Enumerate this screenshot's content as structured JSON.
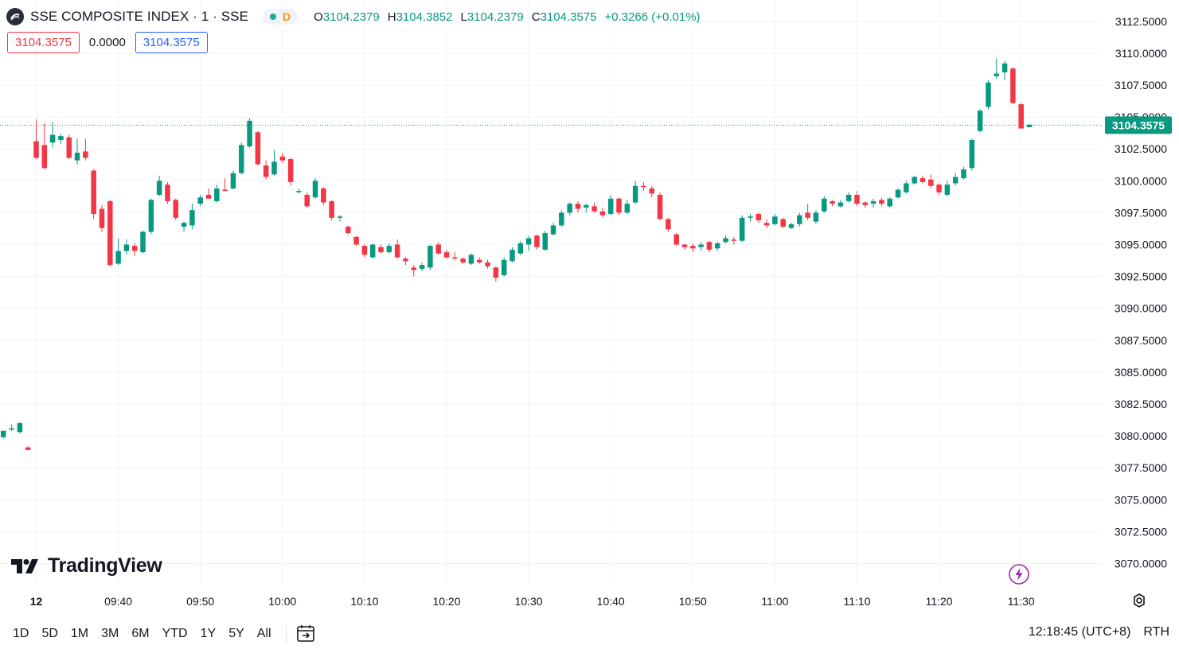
{
  "header": {
    "symbol_title": "SSE COMPOSITE INDEX · 1 · SSE",
    "interval_badge": "D",
    "ohlc": [
      {
        "key": "O",
        "value": "3104.2379"
      },
      {
        "key": "H",
        "value": "3104.3852"
      },
      {
        "key": "L",
        "value": "3104.2379"
      },
      {
        "key": "C",
        "value": "3104.3575"
      }
    ],
    "change": "+0.3266 (+0.01%)"
  },
  "price_boxes": {
    "bid": "3104.3575",
    "spread": "0.0000",
    "ask": "3104.3575"
  },
  "logo_text": "TradingView",
  "range_buttons": [
    "1D",
    "5D",
    "1M",
    "3M",
    "6M",
    "YTD",
    "1Y",
    "5Y",
    "All"
  ],
  "clock": "12:18:45 (UTC+8)",
  "session": "RTH",
  "colors": {
    "up": "#089981",
    "down": "#f23645",
    "grid": "#f0f3fa",
    "text": "#131722"
  },
  "icons": [
    "sse-logo-icon",
    "calendar-goto-icon",
    "settings-gear-icon",
    "flash-icon",
    "tradingview-logo-icon"
  ],
  "chart_data": {
    "type": "candlestick",
    "ylim": [
      3068.75,
      3113.75
    ],
    "y_ticks": [
      "3112.5000",
      "3110.0000",
      "3107.5000",
      "3105.0000",
      "3102.5000",
      "3100.0000",
      "3097.5000",
      "3095.0000",
      "3092.5000",
      "3090.0000",
      "3087.5000",
      "3085.0000",
      "3082.5000",
      "3080.0000",
      "3077.5000",
      "3075.0000",
      "3072.5000",
      "3070.0000"
    ],
    "y_tick_values": [
      3112.5,
      3110,
      3107.5,
      3105,
      3102.5,
      3100,
      3097.5,
      3095,
      3092.5,
      3090,
      3087.5,
      3085,
      3082.5,
      3080,
      3077.5,
      3075,
      3072.5,
      3070
    ],
    "x_ticks": [
      {
        "label": "12",
        "min": 0
      },
      {
        "label": "09:40",
        "min": 10
      },
      {
        "label": "09:50",
        "min": 20
      },
      {
        "label": "10:00",
        "min": 30
      },
      {
        "label": "10:10",
        "min": 40
      },
      {
        "label": "10:20",
        "min": 50
      },
      {
        "label": "10:30",
        "min": 60
      },
      {
        "label": "10:40",
        "min": 70
      },
      {
        "label": "10:50",
        "min": 80
      },
      {
        "label": "11:00",
        "min": 90
      },
      {
        "label": "11:10",
        "min": 100
      },
      {
        "label": "11:20",
        "min": 110
      },
      {
        "label": "11:30",
        "min": 120
      }
    ],
    "last_price_label": "3104.3575",
    "last_price": 3104.3575,
    "candles": [
      {
        "t": -4,
        "o": 3079.9,
        "h": 3080.4,
        "l": 3079.8,
        "c": 3080.4
      },
      {
        "t": -3,
        "o": 3080.5,
        "h": 3080.9,
        "l": 3080.4,
        "c": 3080.6
      },
      {
        "t": -2,
        "o": 3080.3,
        "h": 3081.1,
        "l": 3080.2,
        "c": 3081.0
      },
      {
        "t": -1,
        "o": 3079.1,
        "h": 3079.2,
        "l": 3078.9,
        "c": 3078.9
      },
      {
        "t": 0,
        "o": 3103.1,
        "h": 3104.8,
        "l": 3101.7,
        "c": 3101.8
      },
      {
        "t": 1,
        "o": 3102.8,
        "h": 3104.5,
        "l": 3100.9,
        "c": 3101.0
      },
      {
        "t": 2,
        "o": 3103.0,
        "h": 3104.6,
        "l": 3102.6,
        "c": 3103.6
      },
      {
        "t": 3,
        "o": 3103.2,
        "h": 3103.7,
        "l": 3102.9,
        "c": 3103.5
      },
      {
        "t": 4,
        "o": 3103.4,
        "h": 3103.6,
        "l": 3101.7,
        "c": 3101.8
      },
      {
        "t": 5,
        "o": 3101.6,
        "h": 3103.3,
        "l": 3101.3,
        "c": 3102.2
      },
      {
        "t": 6,
        "o": 3102.3,
        "h": 3103.3,
        "l": 3101.6,
        "c": 3101.8
      },
      {
        "t": 7,
        "o": 3100.8,
        "h": 3100.9,
        "l": 3097.0,
        "c": 3097.4
      },
      {
        "t": 8,
        "o": 3097.8,
        "h": 3098.1,
        "l": 3096.0,
        "c": 3096.3
      },
      {
        "t": 9,
        "o": 3098.4,
        "h": 3098.5,
        "l": 3093.3,
        "c": 3093.4
      },
      {
        "t": 10,
        "o": 3093.5,
        "h": 3095.5,
        "l": 3093.4,
        "c": 3094.5
      },
      {
        "t": 11,
        "o": 3094.5,
        "h": 3095.4,
        "l": 3094.2,
        "c": 3095.0
      },
      {
        "t": 12,
        "o": 3094.9,
        "h": 3095.1,
        "l": 3094.1,
        "c": 3094.5
      },
      {
        "t": 13,
        "o": 3094.4,
        "h": 3096.1,
        "l": 3094.3,
        "c": 3096.0
      },
      {
        "t": 14,
        "o": 3096.0,
        "h": 3098.6,
        "l": 3095.8,
        "c": 3098.5
      },
      {
        "t": 15,
        "o": 3098.9,
        "h": 3100.4,
        "l": 3098.8,
        "c": 3100.0
      },
      {
        "t": 16,
        "o": 3099.7,
        "h": 3099.9,
        "l": 3098.2,
        "c": 3098.4
      },
      {
        "t": 17,
        "o": 3098.5,
        "h": 3098.6,
        "l": 3096.9,
        "c": 3097.1
      },
      {
        "t": 18,
        "o": 3096.4,
        "h": 3096.8,
        "l": 3096.0,
        "c": 3096.7
      },
      {
        "t": 19,
        "o": 3096.5,
        "h": 3098.2,
        "l": 3096.2,
        "c": 3097.7
      },
      {
        "t": 20,
        "o": 3098.2,
        "h": 3098.9,
        "l": 3098.0,
        "c": 3098.7
      },
      {
        "t": 21,
        "o": 3098.9,
        "h": 3099.4,
        "l": 3098.8,
        "c": 3098.6
      },
      {
        "t": 22,
        "o": 3098.4,
        "h": 3099.7,
        "l": 3098.3,
        "c": 3099.4
      },
      {
        "t": 23,
        "o": 3099.3,
        "h": 3100.2,
        "l": 3099.2,
        "c": 3099.2
      },
      {
        "t": 24,
        "o": 3099.4,
        "h": 3100.8,
        "l": 3099.3,
        "c": 3100.6
      },
      {
        "t": 25,
        "o": 3100.6,
        "h": 3103.0,
        "l": 3100.5,
        "c": 3102.8
      },
      {
        "t": 26,
        "o": 3102.7,
        "h": 3104.9,
        "l": 3102.6,
        "c": 3104.7
      },
      {
        "t": 27,
        "o": 3103.8,
        "h": 3103.9,
        "l": 3101.2,
        "c": 3101.3
      },
      {
        "t": 28,
        "o": 3101.2,
        "h": 3101.6,
        "l": 3100.1,
        "c": 3100.3
      },
      {
        "t": 29,
        "o": 3100.5,
        "h": 3102.4,
        "l": 3100.4,
        "c": 3101.5
      },
      {
        "t": 30,
        "o": 3101.9,
        "h": 3102.2,
        "l": 3101.4,
        "c": 3101.6
      },
      {
        "t": 31,
        "o": 3101.7,
        "h": 3101.8,
        "l": 3099.6,
        "c": 3099.9
      },
      {
        "t": 32,
        "o": 3099.2,
        "h": 3099.4,
        "l": 3099.0,
        "c": 3099.2
      },
      {
        "t": 33,
        "o": 3098.9,
        "h": 3099.1,
        "l": 3097.9,
        "c": 3098.0
      },
      {
        "t": 34,
        "o": 3098.7,
        "h": 3100.2,
        "l": 3098.6,
        "c": 3100.0
      },
      {
        "t": 35,
        "o": 3099.4,
        "h": 3099.5,
        "l": 3098.1,
        "c": 3098.3
      },
      {
        "t": 36,
        "o": 3098.4,
        "h": 3098.5,
        "l": 3096.9,
        "c": 3097.1
      },
      {
        "t": 37,
        "o": 3097.1,
        "h": 3097.3,
        "l": 3096.8,
        "c": 3097.2
      },
      {
        "t": 38,
        "o": 3096.4,
        "h": 3096.5,
        "l": 3095.8,
        "c": 3095.9
      },
      {
        "t": 39,
        "o": 3095.6,
        "h": 3095.7,
        "l": 3094.9,
        "c": 3095.0
      },
      {
        "t": 40,
        "o": 3094.9,
        "h": 3095.0,
        "l": 3094.0,
        "c": 3094.2
      },
      {
        "t": 41,
        "o": 3094.0,
        "h": 3095.1,
        "l": 3093.9,
        "c": 3095.0
      },
      {
        "t": 42,
        "o": 3094.8,
        "h": 3095.0,
        "l": 3094.3,
        "c": 3094.4
      },
      {
        "t": 43,
        "o": 3094.4,
        "h": 3095.1,
        "l": 3094.3,
        "c": 3094.9
      },
      {
        "t": 44,
        "o": 3095.0,
        "h": 3095.4,
        "l": 3093.9,
        "c": 3094.0
      },
      {
        "t": 45,
        "o": 3093.9,
        "h": 3094.0,
        "l": 3093.4,
        "c": 3093.7
      },
      {
        "t": 46,
        "o": 3093.2,
        "h": 3093.4,
        "l": 3092.5,
        "c": 3093.0
      },
      {
        "t": 47,
        "o": 3093.1,
        "h": 3093.6,
        "l": 3092.9,
        "c": 3093.4
      },
      {
        "t": 48,
        "o": 3093.2,
        "h": 3095.0,
        "l": 3093.0,
        "c": 3094.9
      },
      {
        "t": 49,
        "o": 3095.0,
        "h": 3095.2,
        "l": 3094.2,
        "c": 3094.3
      },
      {
        "t": 50,
        "o": 3094.4,
        "h": 3094.6,
        "l": 3093.9,
        "c": 3094.0
      },
      {
        "t": 51,
        "o": 3094.0,
        "h": 3094.4,
        "l": 3093.8,
        "c": 3093.9
      },
      {
        "t": 52,
        "o": 3093.9,
        "h": 3094.0,
        "l": 3093.5,
        "c": 3093.6
      },
      {
        "t": 53,
        "o": 3093.5,
        "h": 3094.3,
        "l": 3093.4,
        "c": 3094.2
      },
      {
        "t": 54,
        "o": 3093.8,
        "h": 3094.0,
        "l": 3093.5,
        "c": 3093.6
      },
      {
        "t": 55,
        "o": 3093.6,
        "h": 3093.8,
        "l": 3093.1,
        "c": 3093.3
      },
      {
        "t": 56,
        "o": 3093.2,
        "h": 3093.3,
        "l": 3092.1,
        "c": 3092.4
      },
      {
        "t": 57,
        "o": 3092.6,
        "h": 3094.0,
        "l": 3092.5,
        "c": 3093.8
      },
      {
        "t": 58,
        "o": 3093.7,
        "h": 3094.8,
        "l": 3093.6,
        "c": 3094.6
      },
      {
        "t": 59,
        "o": 3094.3,
        "h": 3095.3,
        "l": 3094.2,
        "c": 3095.1
      },
      {
        "t": 60,
        "o": 3095.0,
        "h": 3095.7,
        "l": 3094.5,
        "c": 3095.5
      },
      {
        "t": 61,
        "o": 3095.7,
        "h": 3095.8,
        "l": 3094.6,
        "c": 3094.8
      },
      {
        "t": 62,
        "o": 3094.6,
        "h": 3096.1,
        "l": 3094.5,
        "c": 3095.9
      },
      {
        "t": 63,
        "o": 3095.8,
        "h": 3096.7,
        "l": 3095.7,
        "c": 3096.5
      },
      {
        "t": 64,
        "o": 3096.5,
        "h": 3097.7,
        "l": 3096.4,
        "c": 3097.5
      },
      {
        "t": 65,
        "o": 3097.5,
        "h": 3098.3,
        "l": 3097.3,
        "c": 3098.2
      },
      {
        "t": 66,
        "o": 3098.2,
        "h": 3098.4,
        "l": 3097.5,
        "c": 3097.8
      },
      {
        "t": 67,
        "o": 3097.9,
        "h": 3098.2,
        "l": 3097.5,
        "c": 3098.1
      },
      {
        "t": 68,
        "o": 3098.0,
        "h": 3098.3,
        "l": 3097.5,
        "c": 3097.6
      },
      {
        "t": 69,
        "o": 3097.6,
        "h": 3097.9,
        "l": 3097.1,
        "c": 3097.3
      },
      {
        "t": 70,
        "o": 3097.4,
        "h": 3098.9,
        "l": 3097.3,
        "c": 3098.6
      },
      {
        "t": 71,
        "o": 3098.6,
        "h": 3098.7,
        "l": 3097.3,
        "c": 3097.5
      },
      {
        "t": 72,
        "o": 3097.5,
        "h": 3098.5,
        "l": 3097.4,
        "c": 3098.2
      },
      {
        "t": 73,
        "o": 3098.3,
        "h": 3100.0,
        "l": 3098.2,
        "c": 3099.6
      },
      {
        "t": 74,
        "o": 3099.6,
        "h": 3099.9,
        "l": 3099.2,
        "c": 3099.5
      },
      {
        "t": 75,
        "o": 3099.4,
        "h": 3099.6,
        "l": 3098.7,
        "c": 3099.0
      },
      {
        "t": 76,
        "o": 3098.9,
        "h": 3099.1,
        "l": 3096.9,
        "c": 3097.0
      },
      {
        "t": 77,
        "o": 3097.0,
        "h": 3097.1,
        "l": 3096.0,
        "c": 3096.2
      },
      {
        "t": 78,
        "o": 3095.8,
        "h": 3095.9,
        "l": 3094.9,
        "c": 3095.0
      },
      {
        "t": 79,
        "o": 3095.0,
        "h": 3095.1,
        "l": 3094.6,
        "c": 3094.8
      },
      {
        "t": 80,
        "o": 3094.9,
        "h": 3095.1,
        "l": 3094.4,
        "c": 3094.7
      },
      {
        "t": 81,
        "o": 3094.8,
        "h": 3095.2,
        "l": 3094.5,
        "c": 3095.0
      },
      {
        "t": 82,
        "o": 3095.2,
        "h": 3095.3,
        "l": 3094.4,
        "c": 3094.6
      },
      {
        "t": 83,
        "o": 3094.7,
        "h": 3095.2,
        "l": 3094.5,
        "c": 3095.1
      },
      {
        "t": 84,
        "o": 3095.2,
        "h": 3095.7,
        "l": 3095.1,
        "c": 3095.5
      },
      {
        "t": 85,
        "o": 3095.4,
        "h": 3095.6,
        "l": 3095.0,
        "c": 3095.3
      },
      {
        "t": 86,
        "o": 3095.3,
        "h": 3097.3,
        "l": 3095.2,
        "c": 3097.1
      },
      {
        "t": 87,
        "o": 3097.1,
        "h": 3097.4,
        "l": 3096.8,
        "c": 3097.2
      },
      {
        "t": 88,
        "o": 3097.4,
        "h": 3097.5,
        "l": 3096.7,
        "c": 3096.9
      },
      {
        "t": 89,
        "o": 3096.7,
        "h": 3097.0,
        "l": 3096.3,
        "c": 3096.5
      },
      {
        "t": 90,
        "o": 3096.6,
        "h": 3097.4,
        "l": 3096.5,
        "c": 3097.2
      },
      {
        "t": 91,
        "o": 3097.0,
        "h": 3097.1,
        "l": 3096.3,
        "c": 3096.4
      },
      {
        "t": 92,
        "o": 3096.3,
        "h": 3096.7,
        "l": 3096.2,
        "c": 3096.6
      },
      {
        "t": 93,
        "o": 3096.6,
        "h": 3097.5,
        "l": 3096.4,
        "c": 3097.3
      },
      {
        "t": 94,
        "o": 3097.5,
        "h": 3098.2,
        "l": 3096.9,
        "c": 3097.1
      },
      {
        "t": 95,
        "o": 3096.8,
        "h": 3097.7,
        "l": 3096.6,
        "c": 3097.5
      },
      {
        "t": 96,
        "o": 3097.6,
        "h": 3098.8,
        "l": 3097.5,
        "c": 3098.6
      },
      {
        "t": 97,
        "o": 3098.4,
        "h": 3098.5,
        "l": 3098.0,
        "c": 3098.2
      },
      {
        "t": 98,
        "o": 3098.0,
        "h": 3098.5,
        "l": 3097.9,
        "c": 3098.3
      },
      {
        "t": 99,
        "o": 3098.4,
        "h": 3099.1,
        "l": 3098.3,
        "c": 3098.9
      },
      {
        "t": 100,
        "o": 3098.9,
        "h": 3099.2,
        "l": 3098.0,
        "c": 3098.2
      },
      {
        "t": 101,
        "o": 3098.3,
        "h": 3098.4,
        "l": 3097.9,
        "c": 3098.1
      },
      {
        "t": 102,
        "o": 3098.2,
        "h": 3098.6,
        "l": 3097.9,
        "c": 3098.4
      },
      {
        "t": 103,
        "o": 3098.5,
        "h": 3098.7,
        "l": 3098.0,
        "c": 3098.2
      },
      {
        "t": 104,
        "o": 3098.0,
        "h": 3098.7,
        "l": 3097.9,
        "c": 3098.6
      },
      {
        "t": 105,
        "o": 3098.7,
        "h": 3099.4,
        "l": 3098.6,
        "c": 3099.3
      },
      {
        "t": 106,
        "o": 3099.1,
        "h": 3100.0,
        "l": 3099.0,
        "c": 3099.8
      },
      {
        "t": 107,
        "o": 3099.8,
        "h": 3100.4,
        "l": 3099.7,
        "c": 3100.3
      },
      {
        "t": 108,
        "o": 3100.2,
        "h": 3100.4,
        "l": 3099.8,
        "c": 3099.9
      },
      {
        "t": 109,
        "o": 3100.1,
        "h": 3100.5,
        "l": 3099.4,
        "c": 3099.6
      },
      {
        "t": 110,
        "o": 3099.7,
        "h": 3099.8,
        "l": 3098.9,
        "c": 3099.1
      },
      {
        "t": 111,
        "o": 3098.9,
        "h": 3100.0,
        "l": 3098.8,
        "c": 3099.7
      },
      {
        "t": 112,
        "o": 3099.8,
        "h": 3100.6,
        "l": 3099.6,
        "c": 3100.3
      },
      {
        "t": 113,
        "o": 3100.2,
        "h": 3101.1,
        "l": 3100.1,
        "c": 3100.9
      },
      {
        "t": 114,
        "o": 3101.0,
        "h": 3103.3,
        "l": 3100.8,
        "c": 3103.2
      },
      {
        "t": 115,
        "o": 3103.9,
        "h": 3105.6,
        "l": 3103.8,
        "c": 3105.5
      },
      {
        "t": 116,
        "o": 3105.8,
        "h": 3107.9,
        "l": 3105.6,
        "c": 3107.7
      },
      {
        "t": 117,
        "o": 3108.2,
        "h": 3109.6,
        "l": 3108.0,
        "c": 3108.4
      },
      {
        "t": 118,
        "o": 3108.5,
        "h": 3109.4,
        "l": 3107.9,
        "c": 3109.2
      },
      {
        "t": 119,
        "o": 3108.8,
        "h": 3108.9,
        "l": 3106.0,
        "c": 3106.1
      },
      {
        "t": 120,
        "o": 3106.0,
        "h": 3106.1,
        "l": 3104.1,
        "c": 3104.1
      },
      {
        "t": 121,
        "o": 3104.2,
        "h": 3104.4,
        "l": 3104.2,
        "c": 3104.4
      }
    ]
  }
}
